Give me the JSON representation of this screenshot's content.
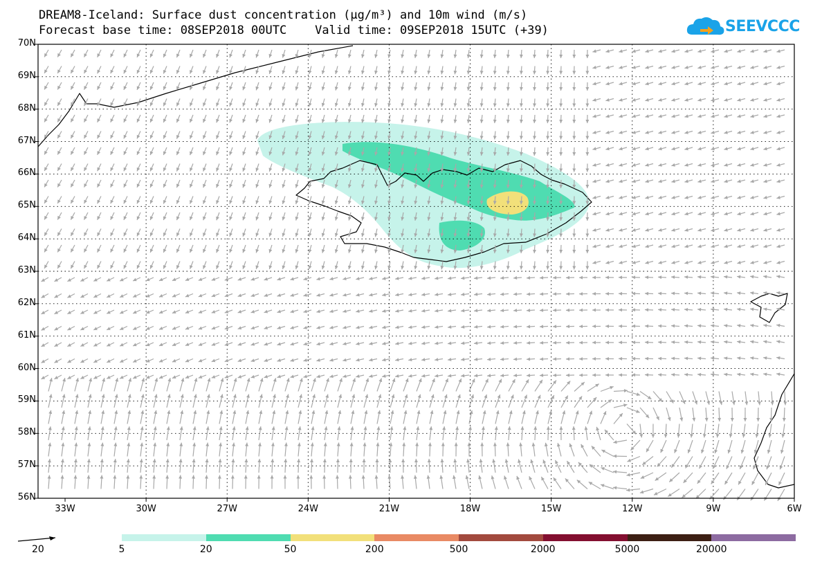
{
  "title": {
    "line1": "DREAM8-Iceland: Surface dust concentration (µg/m³) and 10m wind (m/s)",
    "line2": "Forecast base time: 08SEP2018 00UTC    Valid time: 09SEP2018 15UTC (+39)"
  },
  "logo": {
    "text": "SEEVCCC",
    "icon": "cloud-logo-icon",
    "color": "#1aa3e8"
  },
  "map": {
    "lat_labels": [
      "70N",
      "69N",
      "68N",
      "67N",
      "66N",
      "65N",
      "64N",
      "63N",
      "62N",
      "61N",
      "60N",
      "59N",
      "58N",
      "57N",
      "56N"
    ],
    "lon_labels": [
      "33W",
      "30W",
      "27W",
      "24W",
      "21W",
      "18W",
      "15W",
      "12W",
      "9W",
      "6W"
    ],
    "lat_range": [
      56,
      70
    ],
    "lon_range": [
      -34.0,
      -6.0
    ],
    "grid_lons": [
      -30,
      -27,
      -24,
      -21,
      -18,
      -15,
      -12,
      -9
    ],
    "grid_lats": [
      57,
      58,
      59,
      60,
      61,
      62,
      63,
      64,
      65,
      66,
      67,
      68,
      69
    ],
    "wind_arrow_color": "#a8a8a8"
  },
  "legend": {
    "wind_reference": "20",
    "levels": [
      "5",
      "20",
      "50",
      "200",
      "500",
      "2000",
      "5000",
      "20000"
    ],
    "colors": [
      "#c6f3ea",
      "#4fdcb1",
      "#f2e07a",
      "#e98a64",
      "#a24a3e",
      "#830f30",
      "#3d1f14",
      "#8d6ba1"
    ]
  }
}
